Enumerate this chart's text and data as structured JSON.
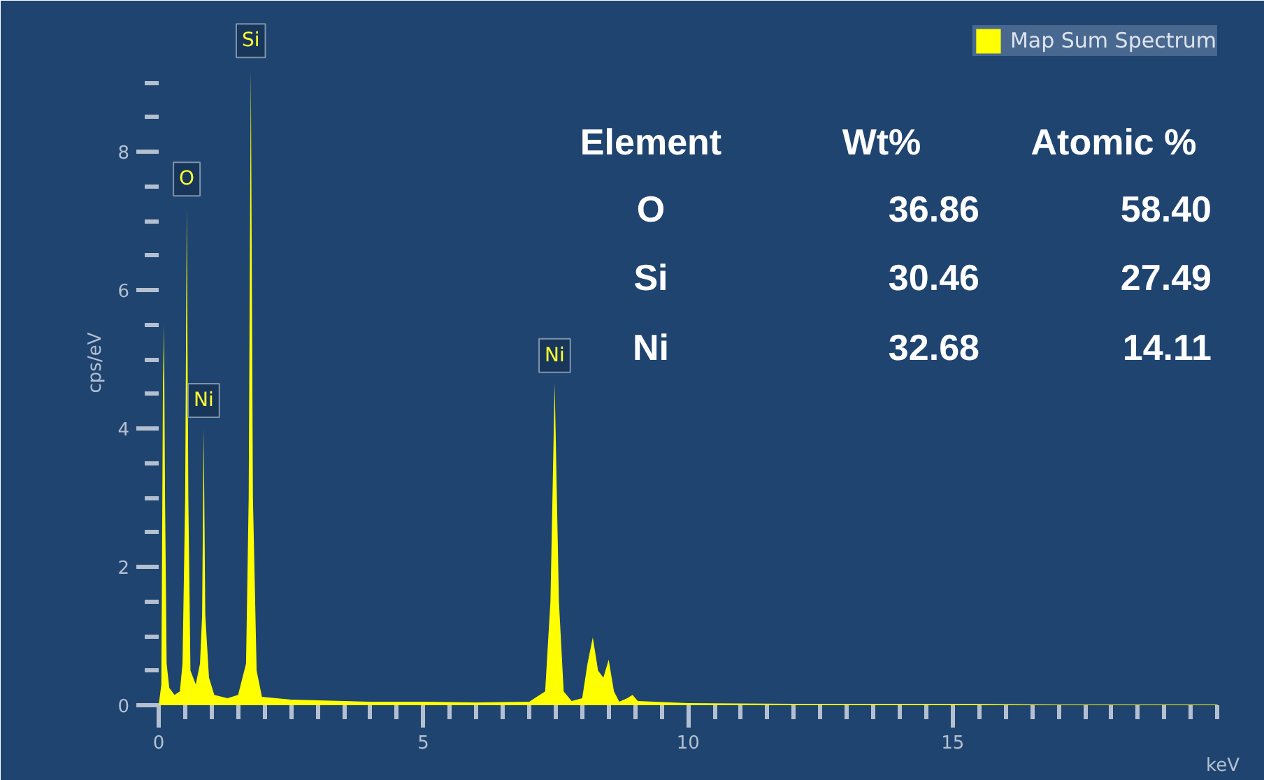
{
  "chart_data": {
    "type": "area",
    "xlabel": "keV",
    "ylabel": "cps/eV",
    "x": [
      0.0,
      0.05,
      0.08,
      0.1,
      0.12,
      0.15,
      0.2,
      0.3,
      0.4,
      0.45,
      0.5,
      0.53,
      0.56,
      0.6,
      0.7,
      0.78,
      0.82,
      0.85,
      0.88,
      0.95,
      1.05,
      1.3,
      1.5,
      1.65,
      1.7,
      1.74,
      1.78,
      1.85,
      1.95,
      2.5,
      3,
      4,
      5,
      6,
      7,
      7.3,
      7.4,
      7.48,
      7.56,
      7.65,
      7.8,
      8.0,
      8.1,
      8.2,
      8.3,
      8.4,
      8.5,
      8.6,
      8.7,
      8.85,
      8.95,
      9.05,
      10,
      12,
      15,
      17,
      20
    ],
    "series": [
      {
        "name": "Map Sum Spectrum",
        "color": "#ffff00",
        "values": [
          0,
          0.3,
          4.6,
          5.5,
          3.0,
          0.6,
          0.25,
          0.15,
          0.2,
          0.6,
          3.0,
          7.2,
          3.0,
          0.5,
          0.3,
          0.6,
          1.3,
          4.0,
          1.3,
          0.4,
          0.15,
          0.1,
          0.15,
          0.6,
          3.0,
          9.2,
          3.0,
          0.5,
          0.12,
          0.08,
          0.07,
          0.05,
          0.05,
          0.04,
          0.05,
          0.2,
          1.5,
          4.65,
          1.5,
          0.2,
          0.06,
          0.1,
          0.6,
          0.98,
          0.5,
          0.4,
          0.66,
          0.2,
          0.05,
          0.1,
          0.15,
          0.06,
          0.03,
          0.02,
          0.02,
          0.01,
          0.01
        ]
      }
    ],
    "xlim": [
      0,
      20.1
    ],
    "ylim": [
      0,
      9.9
    ],
    "xticks": [
      0,
      {
        "value": 0.5,
        "label": null
      },
      {
        "value": 1,
        "label": null
      },
      {
        "value": 1.5,
        "label": null
      },
      {
        "value": 2,
        "label": null
      },
      {
        "value": 2.5,
        "label": null
      },
      {
        "value": 3,
        "label": null
      },
      {
        "value": 3.5,
        "label": null
      },
      {
        "value": 4,
        "label": null
      },
      {
        "value": 4.5,
        "label": null
      },
      5,
      {
        "value": 5.5,
        "label": null
      },
      {
        "value": 6,
        "label": null
      },
      {
        "value": 6.5,
        "label": null
      },
      {
        "value": 7,
        "label": null
      },
      {
        "value": 7.5,
        "label": null
      },
      {
        "value": 8,
        "label": null
      },
      {
        "value": 8.5,
        "label": null
      },
      {
        "value": 9,
        "label": null
      },
      {
        "value": 9.5,
        "label": null
      },
      10,
      {
        "value": 10.5,
        "label": null
      },
      {
        "value": 11,
        "label": null
      },
      {
        "value": 11.5,
        "label": null
      },
      {
        "value": 12,
        "label": null
      },
      {
        "value": 12.5,
        "label": null
      },
      {
        "value": 13,
        "label": null
      },
      {
        "value": 13.5,
        "label": null
      },
      {
        "value": 14,
        "label": null
      },
      {
        "value": 14.5,
        "label": null
      },
      15,
      {
        "value": 15.5,
        "label": null
      },
      {
        "value": 16,
        "label": null
      },
      {
        "value": 16.5,
        "label": null
      },
      {
        "value": 17,
        "label": null
      },
      {
        "value": 17.5,
        "label": null
      },
      {
        "value": 18,
        "label": null
      },
      {
        "value": 18.5,
        "label": null
      },
      {
        "value": 19,
        "label": null
      },
      {
        "value": 19.5,
        "label": null
      },
      {
        "value": 20,
        "label": null
      }
    ],
    "yticks": [
      0,
      {
        "value": 0.5,
        "label": null
      },
      {
        "value": 1,
        "label": null
      },
      {
        "value": 1.5,
        "label": null
      },
      2,
      {
        "value": 2.5,
        "label": null
      },
      {
        "value": 3,
        "label": null
      },
      {
        "value": 3.5,
        "label": null
      },
      4,
      {
        "value": 4.5,
        "label": null
      },
      {
        "value": 5,
        "label": null
      },
      {
        "value": 5.5,
        "label": null
      },
      6,
      {
        "value": 6.5,
        "label": null
      },
      {
        "value": 7,
        "label": null
      },
      {
        "value": 7.5,
        "label": null
      },
      8,
      {
        "value": 8.5,
        "label": null
      },
      {
        "value": 9,
        "label": null
      }
    ],
    "grid": false,
    "legend": "top right",
    "annotations": [
      {
        "text": "O",
        "x": 0.53,
        "y": 7.2
      },
      {
        "text": "Ni",
        "x": 0.85,
        "y": 4.0
      },
      {
        "text": "Si",
        "x": 1.74,
        "y": 9.2
      },
      {
        "text": "Ni",
        "x": 7.48,
        "y": 4.65
      },
      "Element",
      "Wt%",
      "Atomic %",
      "O",
      "36.86",
      "58.40",
      "Si",
      "30.46",
      "27.49",
      "Ni",
      "32.68",
      "14.11"
    ]
  }
}
